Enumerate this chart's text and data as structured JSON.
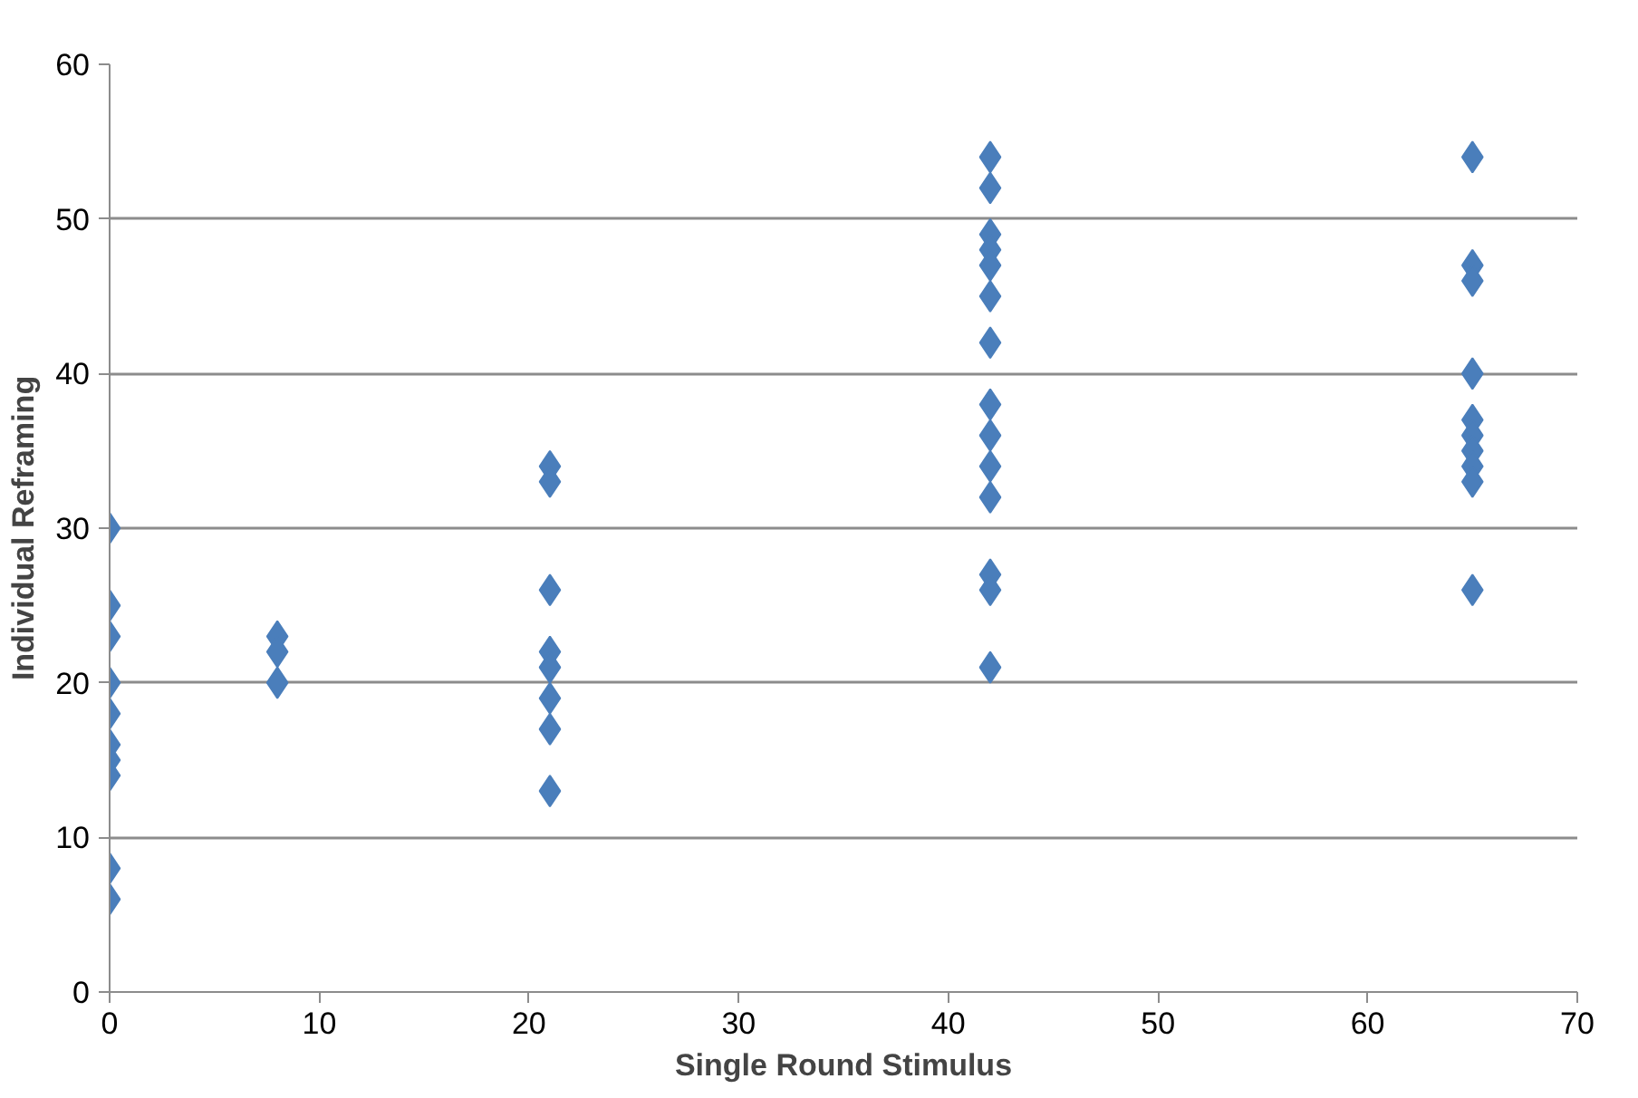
{
  "chart_data": {
    "type": "scatter",
    "xlabel": "Single Round Stimulus",
    "ylabel": "Individual Reframing",
    "marker": "diamond",
    "grid": "y",
    "xlim": [
      0,
      70
    ],
    "xticks": [
      0,
      10,
      20,
      30,
      40,
      50,
      60,
      70
    ],
    "ylim": [
      0,
      60
    ],
    "yticks": [
      0,
      10,
      20,
      30,
      40,
      50,
      60
    ],
    "series": [
      {
        "color": "#4a7ebb",
        "x": [
          0,
          0,
          0,
          0,
          0,
          0,
          0,
          0,
          0,
          0,
          8,
          8,
          8,
          21,
          21,
          21,
          21,
          21,
          21,
          21,
          21,
          42,
          42,
          42,
          42,
          42,
          42,
          42,
          42,
          42,
          42,
          42,
          42,
          42,
          42,
          65,
          65,
          65,
          65,
          65,
          65,
          65,
          65,
          65,
          65
        ],
        "values": [
          30,
          25,
          23,
          20,
          18,
          16,
          15,
          14,
          8,
          6,
          23,
          22,
          20,
          34,
          33,
          26,
          22,
          21,
          19,
          17,
          13,
          54,
          52,
          49,
          48,
          47,
          45,
          42,
          38,
          36,
          34,
          32,
          27,
          26,
          21,
          54,
          47,
          46,
          40,
          37,
          36,
          35,
          34,
          33,
          26
        ]
      }
    ]
  }
}
